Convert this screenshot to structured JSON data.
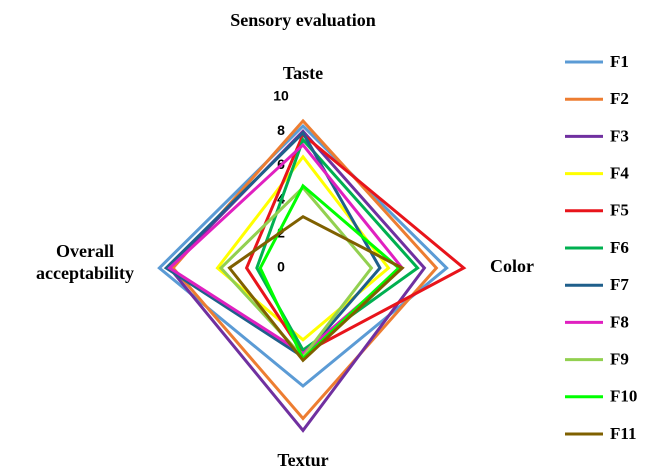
{
  "chart_data": {
    "type": "radar",
    "title": "Sensory evaluation",
    "categories": [
      "Taste",
      "Color",
      "Textur",
      "Overall acceptability"
    ],
    "rlim": [
      0,
      10
    ],
    "rticks": [
      0,
      2,
      4,
      6,
      8,
      10
    ],
    "series": [
      {
        "name": "F1",
        "color": "#5b9bd5",
        "values": [
          8.3,
          8.4,
          6.9,
          8.4
        ]
      },
      {
        "name": "F2",
        "color": "#ed7d31",
        "values": [
          8.6,
          7.8,
          8.8,
          7.6
        ]
      },
      {
        "name": "F3",
        "color": "#7030a0",
        "values": [
          8.0,
          7.1,
          9.5,
          7.8
        ]
      },
      {
        "name": "F4",
        "color": "#ffff00",
        "values": [
          6.5,
          5.0,
          4.2,
          5.0
        ]
      },
      {
        "name": "F5",
        "color": "#e8141b",
        "values": [
          7.8,
          9.4,
          5.0,
          3.3
        ]
      },
      {
        "name": "F6",
        "color": "#00b050",
        "values": [
          7.5,
          6.7,
          4.8,
          2.7
        ]
      },
      {
        "name": "F7",
        "color": "#1f5f8b",
        "values": [
          7.9,
          4.5,
          5.2,
          8.0
        ]
      },
      {
        "name": "F8",
        "color": "#e020c0",
        "values": [
          7.2,
          5.8,
          5.0,
          7.8
        ]
      },
      {
        "name": "F9",
        "color": "#92d050",
        "values": [
          4.7,
          4.0,
          5.2,
          4.8
        ]
      },
      {
        "name": "F10",
        "color": "#00ff00",
        "values": [
          4.8,
          5.6,
          5.3,
          2.5
        ]
      },
      {
        "name": "F11",
        "color": "#7f6000",
        "values": [
          3.0,
          5.8,
          5.4,
          4.3
        ]
      }
    ]
  }
}
